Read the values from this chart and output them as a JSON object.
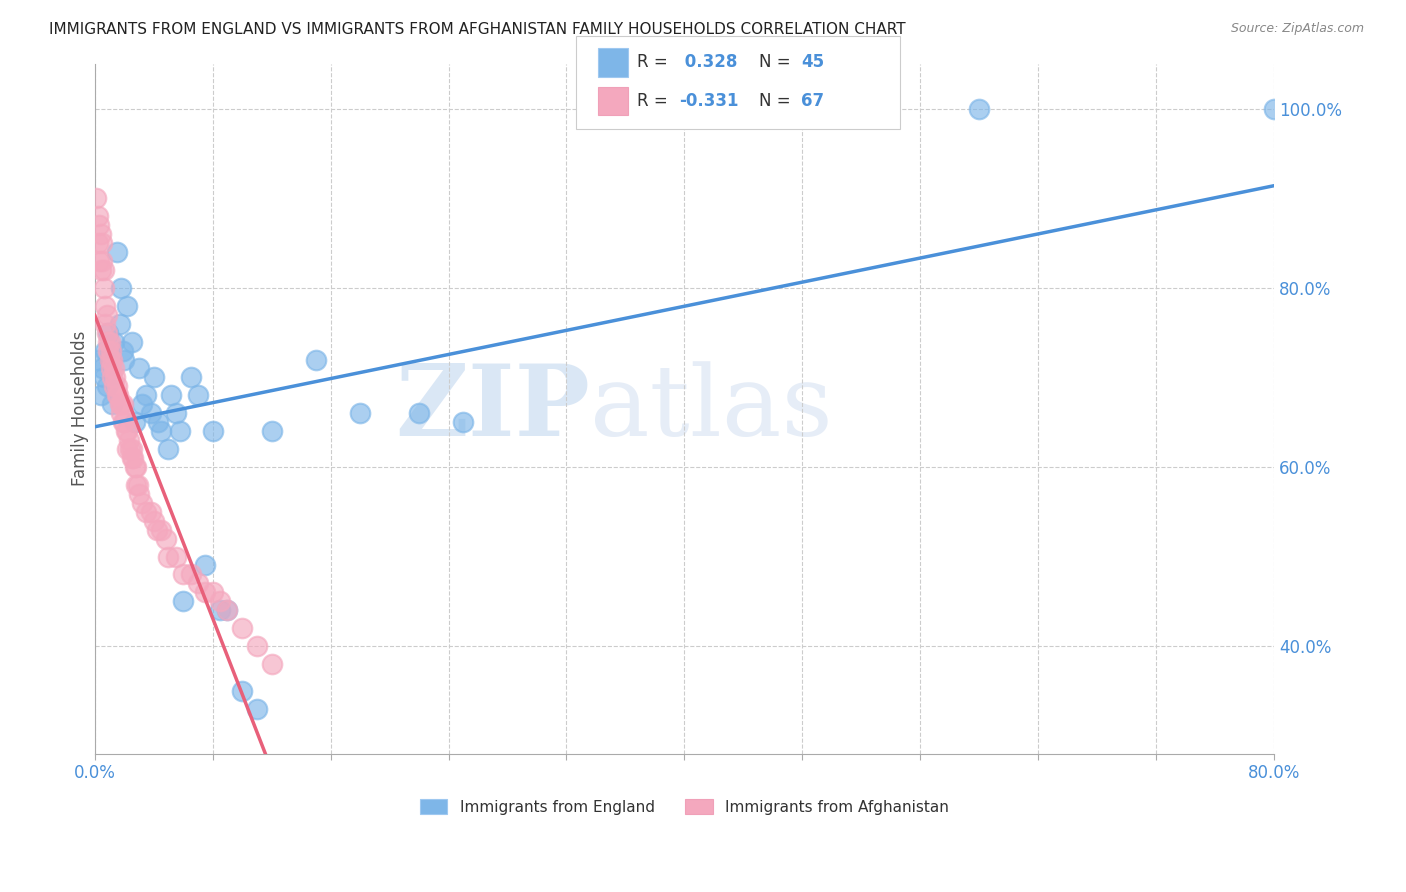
{
  "title": "IMMIGRANTS FROM ENGLAND VS IMMIGRANTS FROM AFGHANISTAN FAMILY HOUSEHOLDS CORRELATION CHART",
  "source": "Source: ZipAtlas.com",
  "ylabel": "Family Households",
  "legend_label1": "Immigrants from England",
  "legend_label2": "Immigrants from Afghanistan",
  "r1": 0.328,
  "n1": 45,
  "r2": -0.331,
  "n2": 67,
  "color_england": "#7EB6E8",
  "color_afghanistan": "#F4A8BE",
  "color_eng_line": "#4A90D9",
  "color_afg_line": "#E8607A",
  "england_x": [
    0.002,
    0.004,
    0.005,
    0.006,
    0.007,
    0.008,
    0.009,
    0.01,
    0.012,
    0.013,
    0.015,
    0.017,
    0.018,
    0.019,
    0.02,
    0.022,
    0.025,
    0.027,
    0.03,
    0.032,
    0.035,
    0.038,
    0.04,
    0.043,
    0.045,
    0.05,
    0.052,
    0.055,
    0.058,
    0.06,
    0.065,
    0.07,
    0.075,
    0.08,
    0.085,
    0.09,
    0.1,
    0.11,
    0.12,
    0.15,
    0.18,
    0.22,
    0.25,
    0.6,
    0.8
  ],
  "england_y": [
    0.72,
    0.68,
    0.71,
    0.7,
    0.73,
    0.69,
    0.75,
    0.72,
    0.67,
    0.74,
    0.84,
    0.76,
    0.8,
    0.73,
    0.72,
    0.78,
    0.74,
    0.65,
    0.71,
    0.67,
    0.68,
    0.66,
    0.7,
    0.65,
    0.64,
    0.62,
    0.68,
    0.66,
    0.64,
    0.45,
    0.7,
    0.68,
    0.49,
    0.64,
    0.44,
    0.44,
    0.35,
    0.33,
    0.64,
    0.72,
    0.66,
    0.66,
    0.65,
    1.0,
    1.0
  ],
  "afghanistan_x": [
    0.001,
    0.002,
    0.002,
    0.003,
    0.003,
    0.004,
    0.004,
    0.005,
    0.005,
    0.006,
    0.006,
    0.007,
    0.007,
    0.008,
    0.008,
    0.009,
    0.009,
    0.01,
    0.01,
    0.011,
    0.011,
    0.012,
    0.012,
    0.013,
    0.013,
    0.014,
    0.015,
    0.015,
    0.016,
    0.017,
    0.018,
    0.018,
    0.019,
    0.019,
    0.02,
    0.021,
    0.022,
    0.022,
    0.023,
    0.024,
    0.025,
    0.025,
    0.026,
    0.027,
    0.028,
    0.028,
    0.029,
    0.03,
    0.032,
    0.035,
    0.038,
    0.04,
    0.042,
    0.045,
    0.048,
    0.05,
    0.055,
    0.06,
    0.065,
    0.07,
    0.075,
    0.08,
    0.085,
    0.09,
    0.1,
    0.11,
    0.12
  ],
  "afghanistan_y": [
    0.9,
    0.88,
    0.85,
    0.87,
    0.83,
    0.86,
    0.82,
    0.85,
    0.83,
    0.82,
    0.8,
    0.78,
    0.76,
    0.77,
    0.75,
    0.74,
    0.73,
    0.74,
    0.72,
    0.73,
    0.71,
    0.72,
    0.7,
    0.71,
    0.69,
    0.7,
    0.69,
    0.68,
    0.68,
    0.67,
    0.67,
    0.66,
    0.67,
    0.65,
    0.65,
    0.64,
    0.64,
    0.62,
    0.63,
    0.62,
    0.62,
    0.61,
    0.61,
    0.6,
    0.6,
    0.58,
    0.58,
    0.57,
    0.56,
    0.55,
    0.55,
    0.54,
    0.53,
    0.53,
    0.52,
    0.5,
    0.5,
    0.48,
    0.48,
    0.47,
    0.46,
    0.46,
    0.45,
    0.44,
    0.42,
    0.4,
    0.38
  ],
  "xlim": [
    0.0,
    0.8
  ],
  "ylim": [
    0.28,
    1.05
  ],
  "xtick_positions": [
    0.0,
    0.08,
    0.16,
    0.24,
    0.32,
    0.4,
    0.48,
    0.56,
    0.64,
    0.72,
    0.8
  ],
  "yticks_right": [
    0.4,
    0.6,
    0.8,
    1.0
  ],
  "watermark_zip": "ZIP",
  "watermark_atlas": "atlas",
  "background_color": "#ffffff",
  "grid_color": "#cccccc",
  "afg_line_end_x": 0.3
}
